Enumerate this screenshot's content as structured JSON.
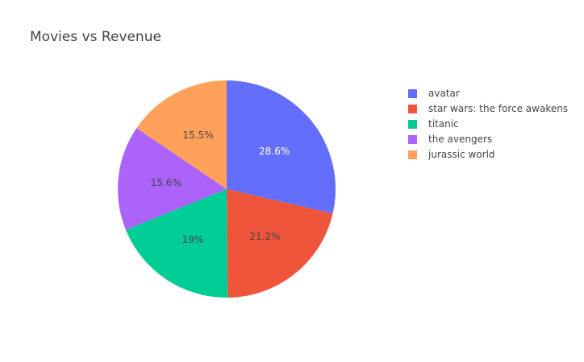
{
  "chart_data": {
    "type": "pie",
    "title": "Movies vs Revenue",
    "legend_position": "right",
    "slices": [
      {
        "label": "avatar",
        "percent": 28.6,
        "percent_label": "28.6%",
        "color": "#636efa",
        "label_color": "#ffffff"
      },
      {
        "label": "star wars: the force awakens",
        "percent": 21.2,
        "percent_label": "21.2%",
        "color": "#ef553b",
        "label_color": "#444444"
      },
      {
        "label": "titanic",
        "percent": 19.0,
        "percent_label": "19%",
        "color": "#00cc96",
        "label_color": "#444444"
      },
      {
        "label": "the avengers",
        "percent": 15.6,
        "percent_label": "15.6%",
        "color": "#ab63fa",
        "label_color": "#444444"
      },
      {
        "label": "jurassic world",
        "percent": 15.5,
        "percent_label": "15.5%",
        "color": "#ffa15a",
        "label_color": "#444444"
      }
    ]
  }
}
